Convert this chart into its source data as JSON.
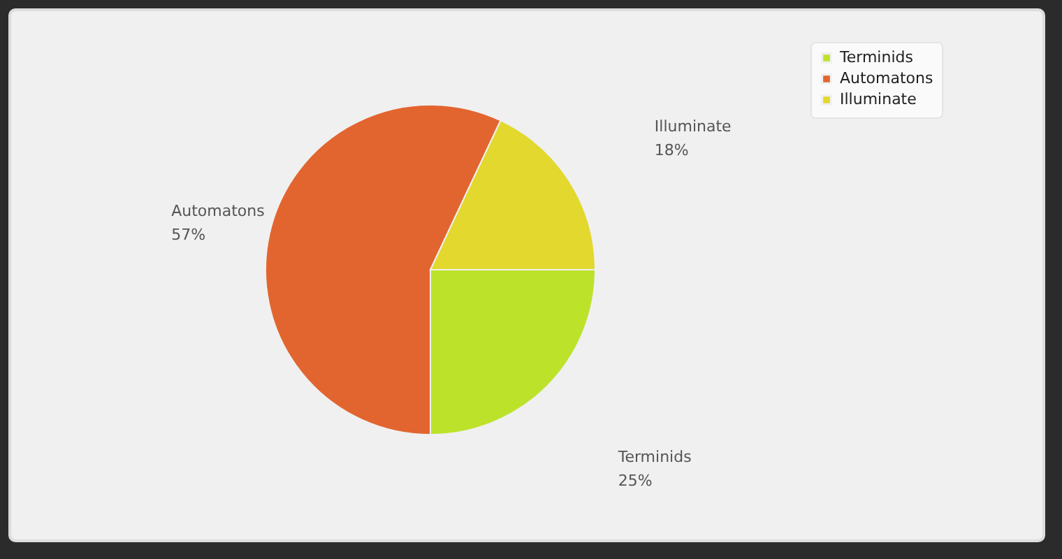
{
  "chart_data": {
    "type": "pie",
    "categories": [
      "Terminids",
      "Automatons",
      "Illuminate"
    ],
    "values": [
      25,
      57,
      18
    ],
    "colors": [
      "#bde22a",
      "#e2652f",
      "#e2d82e"
    ],
    "value_labels": [
      "25%",
      "57%",
      "18%"
    ],
    "legend": "top right"
  }
}
